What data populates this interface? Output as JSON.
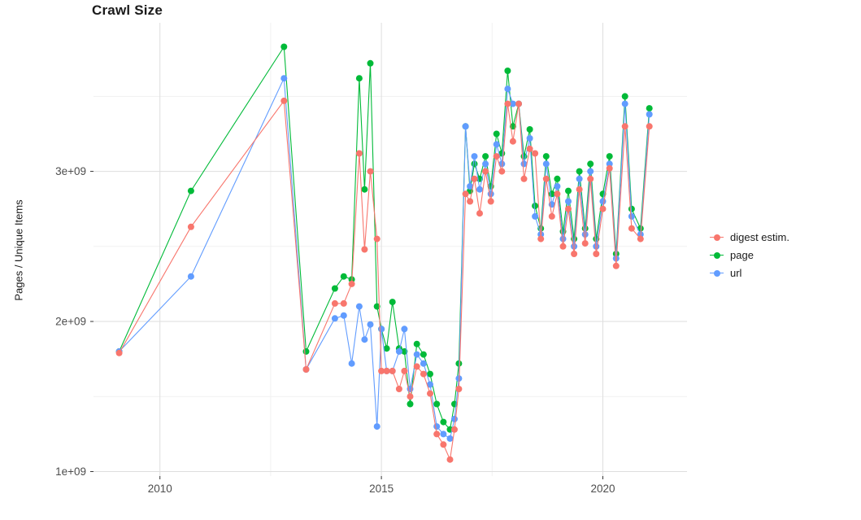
{
  "chart_data": {
    "type": "line",
    "title": "Crawl Size",
    "ylabel": "Pages / Unique Items",
    "xlabel": "",
    "value_unit": "1e+09",
    "grid": true,
    "legend_position": "right",
    "xlim": [
      2008.5,
      2021.9
    ],
    "ylim": [
      0.97,
      3.99
    ],
    "x_ticks": [
      {
        "value": 2010,
        "label": "2010"
      },
      {
        "value": 2015,
        "label": "2015"
      },
      {
        "value": 2020,
        "label": "2020"
      }
    ],
    "x_minor_ticks": [
      2012.5,
      2017.5
    ],
    "y_ticks": [
      {
        "value": 1,
        "label": "1e+09"
      },
      {
        "value": 2,
        "label": "2e+09"
      },
      {
        "value": 3,
        "label": "3e+09"
      }
    ],
    "y_minor_ticks": [
      1.5,
      2.5,
      3.5
    ],
    "x": [
      2009.08,
      2010.7,
      2012.8,
      2013.3,
      2013.95,
      2014.15,
      2014.33,
      2014.5,
      2014.62,
      2014.75,
      2014.9,
      2015.0,
      2015.12,
      2015.25,
      2015.4,
      2015.52,
      2015.65,
      2015.8,
      2015.95,
      2016.1,
      2016.25,
      2016.4,
      2016.55,
      2016.65,
      2016.75,
      2016.9,
      2017.0,
      2017.1,
      2017.22,
      2017.35,
      2017.47,
      2017.6,
      2017.72,
      2017.85,
      2017.97,
      2018.1,
      2018.22,
      2018.35,
      2018.47,
      2018.6,
      2018.72,
      2018.85,
      2018.97,
      2019.1,
      2019.22,
      2019.35,
      2019.47,
      2019.6,
      2019.72,
      2019.85,
      2020.0,
      2020.15,
      2020.3,
      2020.5,
      2020.65,
      2020.85,
      2021.05
    ],
    "series": [
      {
        "name": "digest estim.",
        "color": "#F8766D",
        "values": [
          1.79,
          2.63,
          3.47,
          1.68,
          2.12,
          2.12,
          2.25,
          3.12,
          2.48,
          3.0,
          2.55,
          1.67,
          1.67,
          1.67,
          1.55,
          1.67,
          1.5,
          1.7,
          1.65,
          1.52,
          1.25,
          1.18,
          1.08,
          1.28,
          1.55,
          2.85,
          2.8,
          2.95,
          2.72,
          3.0,
          2.8,
          3.1,
          3.0,
          3.45,
          3.2,
          3.45,
          2.95,
          3.15,
          3.12,
          2.55,
          2.95,
          2.7,
          2.85,
          2.5,
          2.75,
          2.45,
          2.88,
          2.52,
          2.95,
          2.45,
          2.75,
          3.02,
          2.37,
          3.3,
          2.62,
          2.55,
          3.3
        ]
      },
      {
        "name": "page",
        "color": "#00BA38",
        "values": [
          1.8,
          2.87,
          3.83,
          1.8,
          2.22,
          2.3,
          2.28,
          3.62,
          2.88,
          3.72,
          2.1,
          1.95,
          1.82,
          2.13,
          1.82,
          1.8,
          1.45,
          1.85,
          1.78,
          1.65,
          1.45,
          1.33,
          1.28,
          1.45,
          1.72,
          3.3,
          2.87,
          3.05,
          2.95,
          3.1,
          2.9,
          3.25,
          3.12,
          3.67,
          3.3,
          3.45,
          3.1,
          3.28,
          2.77,
          2.62,
          3.1,
          2.85,
          2.95,
          2.6,
          2.87,
          2.55,
          3.0,
          2.62,
          3.05,
          2.55,
          2.85,
          3.1,
          2.45,
          3.5,
          2.75,
          2.62,
          3.42
        ]
      },
      {
        "name": "url",
        "color": "#619CFF",
        "values": [
          1.8,
          2.3,
          3.62,
          1.68,
          2.02,
          2.04,
          1.72,
          2.1,
          1.88,
          1.98,
          1.3,
          1.95,
          1.67,
          1.67,
          1.8,
          1.95,
          1.55,
          1.78,
          1.72,
          1.58,
          1.3,
          1.25,
          1.22,
          1.35,
          1.62,
          3.3,
          2.9,
          3.1,
          2.88,
          3.05,
          2.85,
          3.18,
          3.05,
          3.55,
          3.45,
          3.45,
          3.05,
          3.22,
          2.7,
          2.58,
          3.05,
          2.78,
          2.9,
          2.55,
          2.8,
          2.5,
          2.95,
          2.58,
          3.0,
          2.5,
          2.8,
          3.05,
          2.42,
          3.45,
          2.7,
          2.58,
          3.38
        ]
      }
    ],
    "draw_order": [
      "page",
      "url",
      "digest estim."
    ]
  },
  "colors": {
    "grid_major": "#DEDEDE",
    "grid_minor": "#F1F1F1",
    "tick_text": "#4D4D4D",
    "tick_mark": "#333333",
    "title_text": "#1a1a1a"
  }
}
